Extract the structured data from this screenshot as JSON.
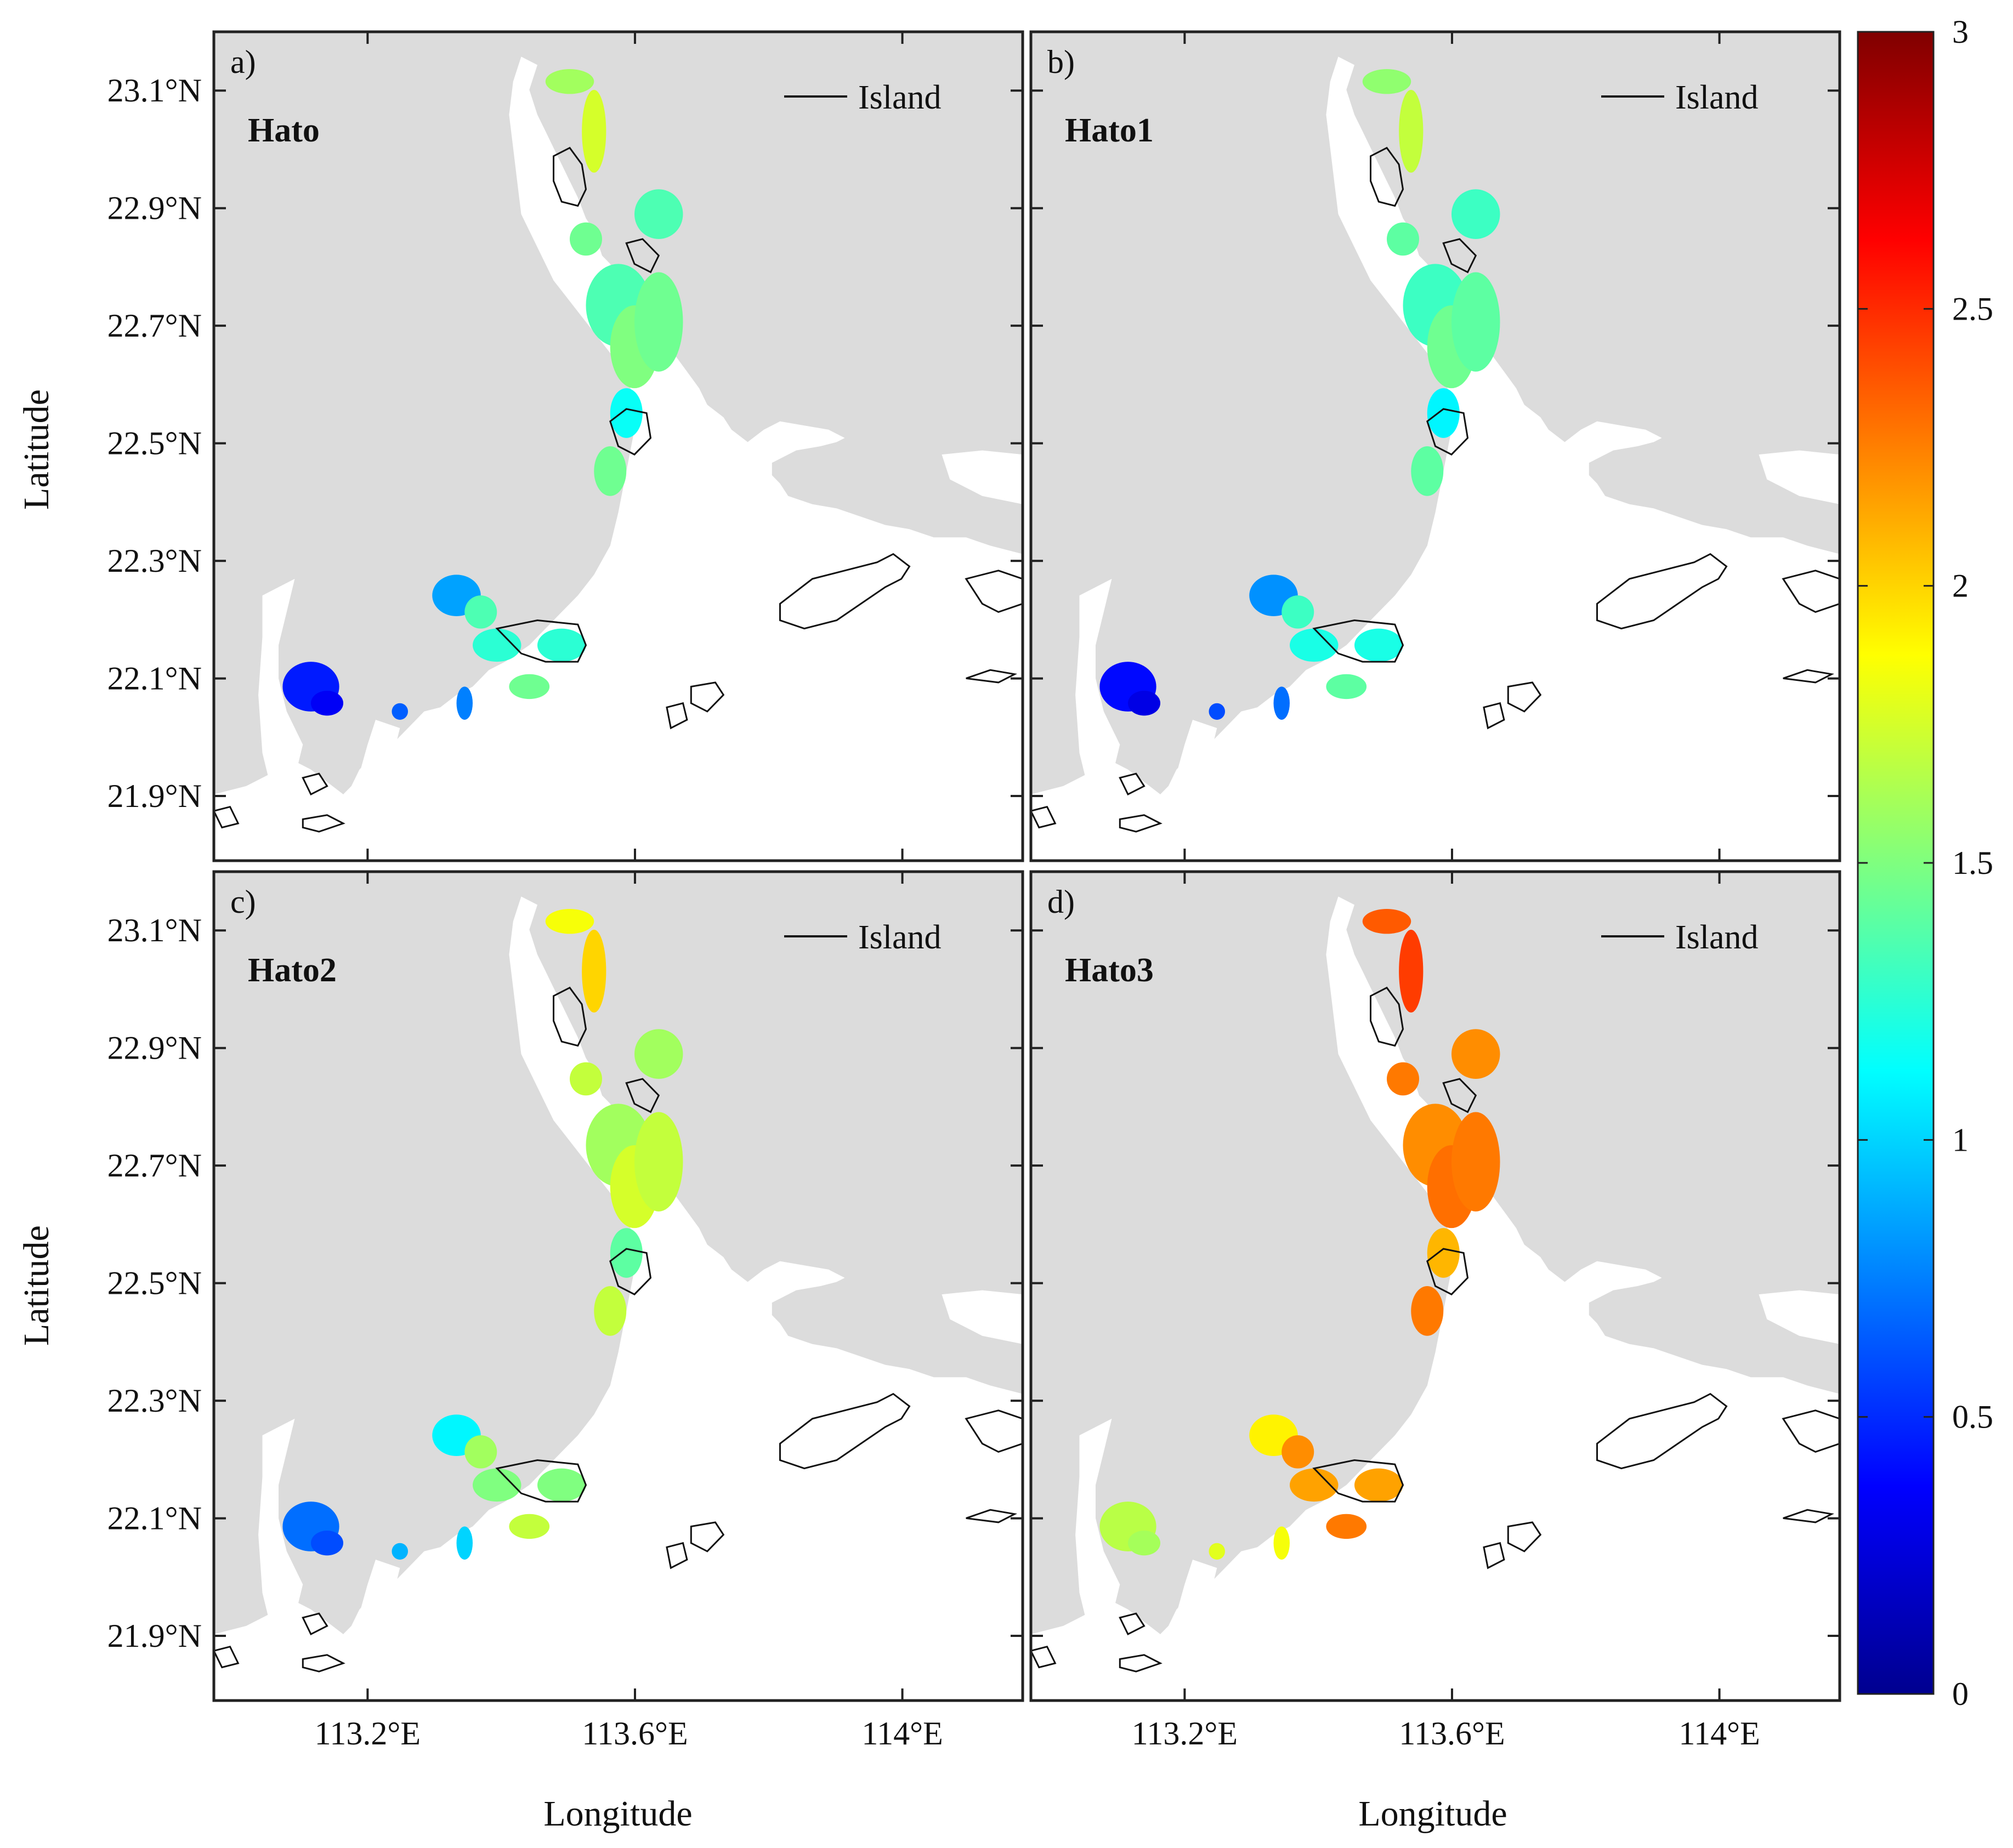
{
  "figure": {
    "xlabel": "Longitude",
    "ylabel": "Latitude",
    "x_ticks": [
      {
        "value": 113.2,
        "label": "113.2°E"
      },
      {
        "value": 113.6,
        "label": "113.6°E"
      },
      {
        "value": 114.0,
        "label": "114°E"
      }
    ],
    "y_ticks": [
      {
        "value": 23.1,
        "label": "23.1°N"
      },
      {
        "value": 22.9,
        "label": "22.9°N"
      },
      {
        "value": 22.7,
        "label": "22.7°N"
      },
      {
        "value": 22.5,
        "label": "22.5°N"
      },
      {
        "value": 22.3,
        "label": "22.3°N"
      },
      {
        "value": 22.1,
        "label": "22.1°N"
      },
      {
        "value": 21.9,
        "label": "21.9°N"
      }
    ],
    "legend_label": "Island",
    "colorbar": {
      "min": 0,
      "max": 3,
      "ticks": [
        "0",
        "0.5",
        "1",
        "1.5",
        "2",
        "2.5",
        "3"
      ],
      "colormap": "jet"
    }
  },
  "chart_data": [
    {
      "type": "heatmap",
      "panel": "a)",
      "title": "Hato",
      "intensity": 1.25
    },
    {
      "type": "heatmap",
      "panel": "b)",
      "title": "Hato1",
      "intensity": 1.2
    },
    {
      "type": "heatmap",
      "panel": "c)",
      "title": "Hato2",
      "intensity": 1.5
    },
    {
      "type": "heatmap",
      "panel": "d)",
      "title": "Hato3",
      "intensity": 2.15
    }
  ]
}
